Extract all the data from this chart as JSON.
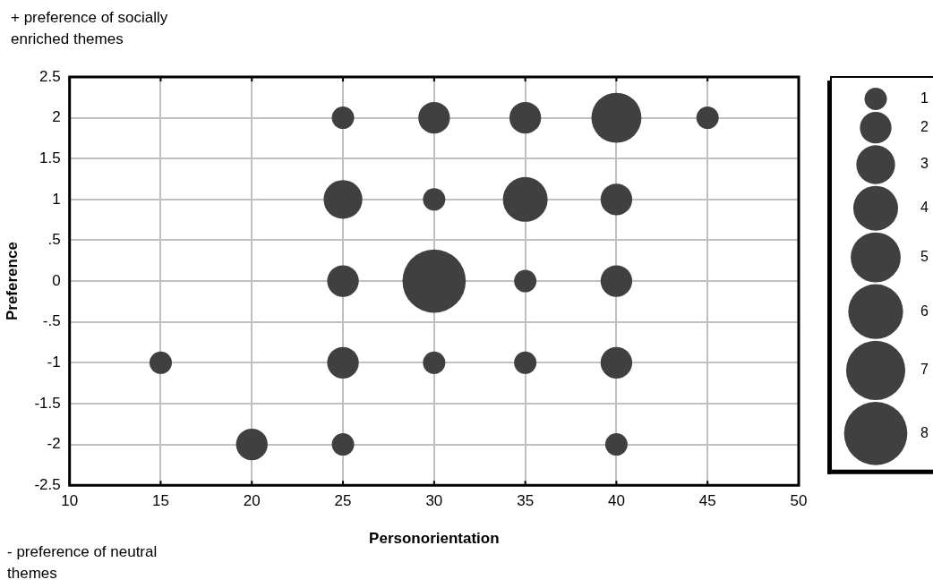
{
  "chart_data": {
    "type": "bubble",
    "xlabel": "Personorientation",
    "ylabel": "Preference",
    "annotations": [
      "+ preference of socially enriched themes",
      "- preference of neutral themes"
    ],
    "x": [
      25,
      30,
      35,
      40,
      45,
      25,
      30,
      35,
      40,
      25,
      30,
      35,
      40,
      15,
      25,
      30,
      35,
      40,
      20,
      25,
      40
    ],
    "values": [
      2,
      2,
      2,
      2,
      2,
      1,
      1,
      1,
      1,
      0,
      0,
      0,
      0,
      -1,
      -1,
      -1,
      -1,
      -1,
      -2,
      -2,
      -2
    ],
    "sizes": [
      1,
      2,
      2,
      5,
      1,
      3,
      1,
      4,
      2,
      2,
      8,
      1,
      2,
      1,
      2,
      1,
      1,
      2,
      2,
      1,
      1
    ],
    "color": "#404040",
    "marker": "circle",
    "size_legend": [
      1,
      2,
      3,
      4,
      5,
      6,
      7,
      8
    ],
    "xlim": [
      10,
      50
    ],
    "xticks": [
      10,
      15,
      20,
      25,
      30,
      35,
      40,
      45,
      50
    ],
    "ylim": [
      -2.5,
      2.5
    ],
    "yticks": [
      -2.5,
      -2,
      -1.5,
      -1,
      {
        "value": -0.5,
        "label": "-.5"
      },
      0,
      {
        "value": 0.5,
        "label": ".5"
      },
      1,
      1.5,
      2,
      2.5
    ],
    "grid": true
  }
}
